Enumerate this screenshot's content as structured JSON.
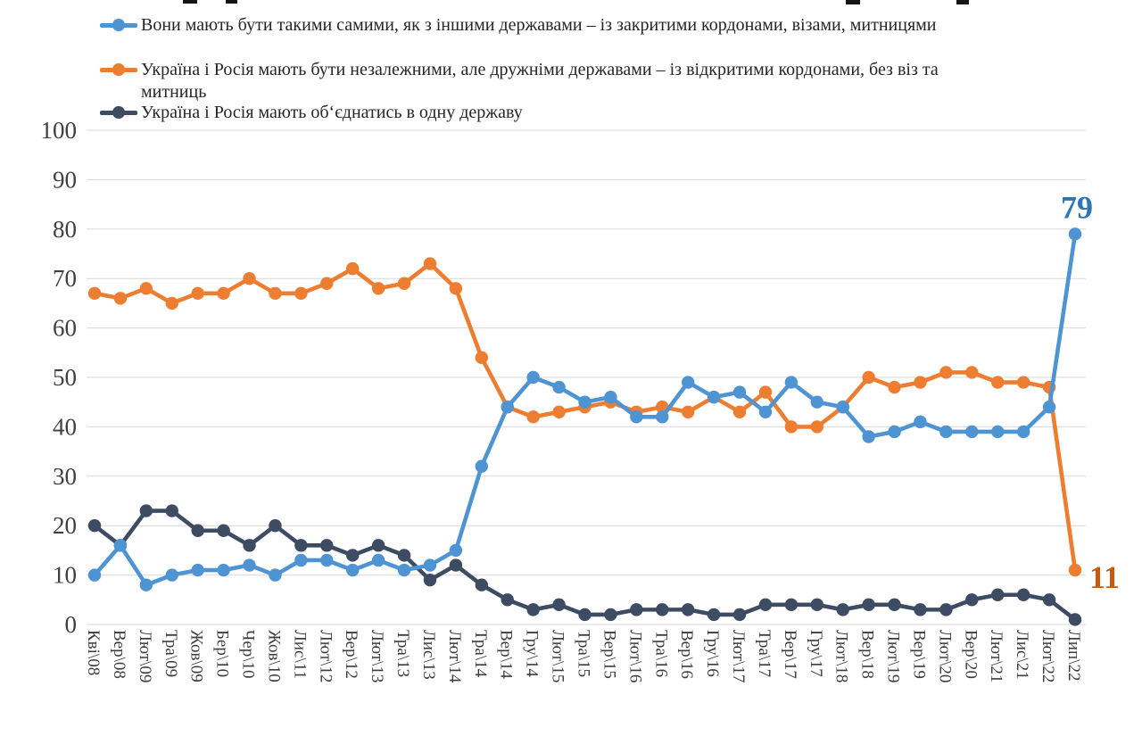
{
  "legend": {
    "items": [
      {
        "label": "Вони мають бути такими самими, як з іншими державами – із закритими кордонами, візами, митницями",
        "color": "#4E94D3"
      },
      {
        "label": "Україна і Росія мають бути незалежними, але дружніми державами – із відкритими кордонами, без віз та\nмитниць",
        "color": "#ED7D31"
      },
      {
        "label": "Україна і Росія мають об‘єднатись в одну державу",
        "color": "#3D4C63"
      }
    ]
  },
  "chart_data": {
    "type": "line",
    "title": "",
    "xlabel": "",
    "ylabel": "",
    "ylim": [
      0,
      100
    ],
    "ytick_step": 10,
    "grid": true,
    "legend_position": "top-left",
    "categories": [
      "Кві\\08",
      "Вер\\08",
      "Лют\\09",
      "Тра\\09",
      "Жов\\09",
      "Бер\\10",
      "Чер\\10",
      "Жов\\10",
      "Лис\\11",
      "Лют\\12",
      "Вер\\12",
      "Лют\\13",
      "Тра\\13",
      "Лис\\13",
      "Лют\\14",
      "Тра\\14",
      "Вер\\14",
      "Гру\\14",
      "Лют\\15",
      "Тра\\15",
      "Вер\\15",
      "Лют\\16",
      "Тра\\16",
      "Вер\\16",
      "Гру\\16",
      "Лют\\17",
      "Тра\\17",
      "Вер\\17",
      "Гру\\17",
      "Лют\\18",
      "Вер\\18",
      "Лют\\19",
      "Вер\\19",
      "Лют\\20",
      "Вер\\20",
      "Лют\\21",
      "Лис\\21",
      "Лют\\22",
      "Лип\\22"
    ],
    "series": [
      {
        "name": "Вони мають бути такими самими, як з іншими державами – із закритими кордонами, візами, митницями",
        "color": "#4E94D3",
        "values": [
          10,
          16,
          8,
          10,
          11,
          11,
          12,
          10,
          13,
          13,
          11,
          13,
          11,
          12,
          15,
          32,
          44,
          50,
          48,
          45,
          46,
          42,
          42,
          49,
          46,
          47,
          43,
          49,
          45,
          44,
          38,
          39,
          41,
          39,
          39,
          39,
          39,
          44,
          79
        ]
      },
      {
        "name": "Україна і Росія мають бути незалежними, але дружніми державами – із відкритими кордонами, без віз та митниць",
        "color": "#ED7D31",
        "values": [
          67,
          66,
          68,
          65,
          67,
          67,
          70,
          67,
          67,
          69,
          72,
          68,
          69,
          73,
          68,
          54,
          44,
          42,
          43,
          44,
          45,
          43,
          44,
          43,
          46,
          43,
          47,
          40,
          40,
          44,
          50,
          48,
          49,
          51,
          51,
          49,
          49,
          48,
          11
        ]
      },
      {
        "name": "Україна і Росія мають об‘єднатись в одну державу",
        "color": "#3D4C63",
        "values": [
          20,
          16,
          23,
          23,
          19,
          19,
          16,
          20,
          16,
          16,
          14,
          16,
          14,
          9,
          12,
          8,
          5,
          3,
          4,
          2,
          2,
          3,
          3,
          3,
          2,
          2,
          4,
          4,
          4,
          3,
          4,
          4,
          3,
          3,
          5,
          6,
          6,
          5,
          1
        ]
      }
    ],
    "end_labels": [
      {
        "text": "79",
        "color": "#2E75B6",
        "series": 0,
        "point": 38,
        "placement": "above"
      },
      {
        "text": "11",
        "color": "#C55A11",
        "series": 1,
        "point": 38,
        "placement": "right"
      }
    ]
  }
}
